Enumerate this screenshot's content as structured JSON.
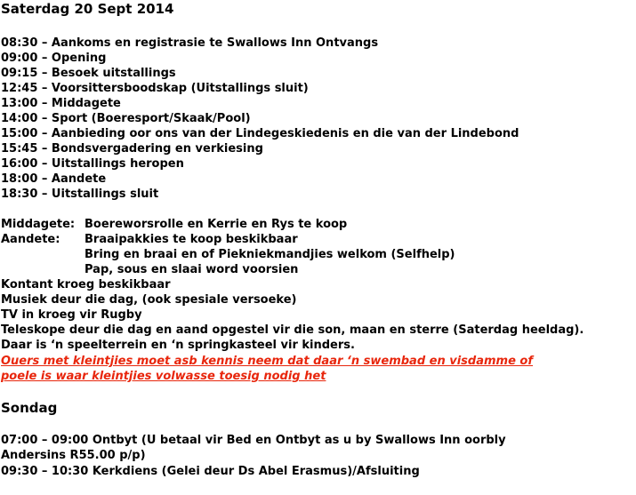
{
  "saturday": {
    "title": "Saterdag 20 Sept 2014",
    "schedule": [
      "08:30 – Aankoms en registrasie te Swallows Inn Ontvangs",
      "09:00 – Opening",
      "09:15 – Besoek uitstallings",
      "12:45 – Voorsittersboodskap (Uitstallings sluit)",
      "13:00 – Middagete",
      "14:00 – Sport (Boeresport/Skaak/Pool)",
      "15:00 – Aanbieding oor ons van der Lindegeskiedenis en die van der Lindebond",
      "15:45 – Bondsvergadering en verkiesing",
      "16:00 – Uitstallings heropen",
      "18:00 – Aandete",
      "18:30 – Uitstallings sluit"
    ],
    "middagete": {
      "label": "Middagete:",
      "text": "Boereworsrolle en Kerrie en Rys te koop"
    },
    "aandete": {
      "label": "Aandete:",
      "lines": [
        "Braaipakkies te koop beskikbaar",
        "Bring en braai en of Piekniekmandjies welkom (Selfhelp)",
        "Pap, sous en slaai word voorsien"
      ]
    },
    "notes": [
      "Kontant kroeg beskikbaar",
      "Musiek deur die dag, (ook spesiale versoeke)",
      "TV in kroeg vir Rugby",
      "Teleskope deur die dag en aand opgestel vir die son, maan en sterre (Saterdag heeldag).",
      "Daar is ‘n speelterrein en ‘n springkasteel vir kinders."
    ],
    "warning": [
      "Ouers met kleintjies moet asb kennis neem dat daar ‘n swembad en visdamme of",
      "poele is waar kleintjies volwasse toesig nodig het"
    ]
  },
  "sunday": {
    "title": "Sondag",
    "schedule": [
      "07:00 – 09:00 Ontbyt (U betaal vir Bed en Ontbyt as u by Swallows Inn oorbly",
      "Andersins R55.00 p/p)",
      "09:30 – 10:30 Kerkdiens (Gelei deur Ds  Abel Erasmus)/Afsluiting"
    ]
  }
}
